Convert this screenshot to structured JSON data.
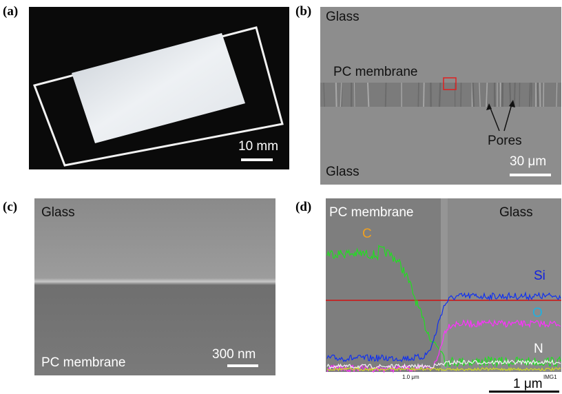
{
  "panel_a": {
    "label": "(a)",
    "scale_bar": "10 mm"
  },
  "panel_b": {
    "label": "(b)",
    "top": "Glass",
    "membrane": "PC membrane",
    "pores": "Pores",
    "bottom": "Glass",
    "scale_bar": "30 μm"
  },
  "panel_c": {
    "label": "(c)",
    "top": "Glass",
    "bottom": "PC membrane",
    "scale_bar": "300 nm"
  },
  "panel_d": {
    "label": "(d)",
    "left": "PC membrane",
    "right": "Glass",
    "c": "C",
    "si": "Si",
    "o": "O",
    "n": "N",
    "axis_label": "1.0 μm",
    "scale_bar": "1 μm",
    "tag": "IMG1"
  }
}
